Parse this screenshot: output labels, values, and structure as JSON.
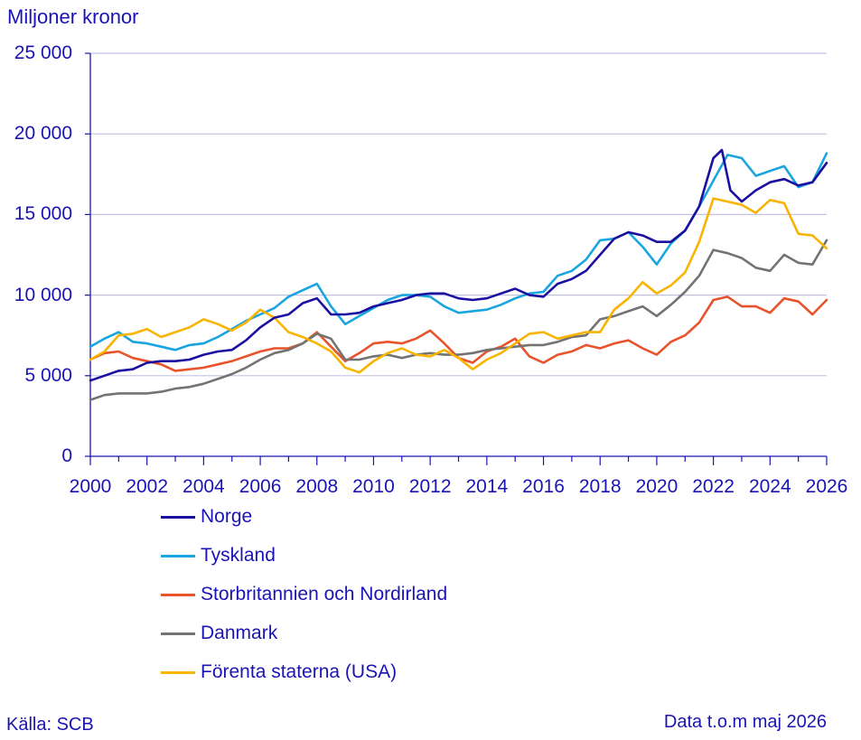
{
  "chart_data": {
    "type": "line",
    "title": "",
    "ylabel": "Miljoner kronor",
    "xlabel": "",
    "xlim": [
      2000,
      2026
    ],
    "ylim": [
      0,
      25000
    ],
    "grid": true,
    "legend_position": "bottom-left",
    "x_ticks": [
      "2000",
      "2002",
      "2004",
      "2006",
      "2008",
      "2010",
      "2012",
      "2014",
      "2016",
      "2018",
      "2020",
      "2022",
      "2024",
      "2026"
    ],
    "y_ticks": [
      "0",
      "5 000",
      "10 000",
      "15 000",
      "20 000",
      "25 000"
    ],
    "series": [
      {
        "name": "Norge",
        "color": "#1a0fa0",
        "x": [
          2000,
          2000.5,
          2001,
          2001.5,
          2002,
          2002.5,
          2003,
          2003.5,
          2004,
          2004.5,
          2005,
          2005.5,
          2006,
          2006.5,
          2007,
          2007.5,
          2008,
          2008.5,
          2009,
          2009.5,
          2010,
          2010.5,
          2011,
          2011.5,
          2012,
          2012.5,
          2013,
          2013.5,
          2014,
          2014.5,
          2015,
          2015.5,
          2016,
          2016.5,
          2017,
          2017.5,
          2018,
          2018.5,
          2019,
          2019.5,
          2020,
          2020.5,
          2021,
          2021.5,
          2022,
          2022.3,
          2022.6,
          2023,
          2023.5,
          2024,
          2024.5,
          2025,
          2025.5,
          2026
        ],
        "y": [
          4700,
          5000,
          5300,
          5400,
          5800,
          5900,
          5900,
          6000,
          6300,
          6500,
          6600,
          7200,
          8000,
          8600,
          8800,
          9500,
          9800,
          8800,
          8800,
          8900,
          9300,
          9500,
          9700,
          10000,
          10100,
          10100,
          9800,
          9700,
          9800,
          10100,
          10400,
          10000,
          9900,
          10700,
          11000,
          11500,
          12500,
          13500,
          13900,
          13700,
          13300,
          13300,
          14000,
          15500,
          18500,
          19000,
          16500,
          15800,
          16500,
          17000,
          17200,
          16800,
          17000,
          18200
        ]
      },
      {
        "name": "Tyskland",
        "color": "#19a5df",
        "x": [
          2000,
          2000.5,
          2001,
          2001.5,
          2002,
          2002.5,
          2003,
          2003.5,
          2004,
          2004.5,
          2005,
          2005.5,
          2006,
          2006.5,
          2007,
          2007.5,
          2008,
          2008.5,
          2009,
          2009.5,
          2010,
          2010.5,
          2011,
          2011.5,
          2012,
          2012.5,
          2013,
          2013.5,
          2014,
          2014.5,
          2015,
          2015.5,
          2016,
          2016.5,
          2017,
          2017.5,
          2018,
          2018.5,
          2019,
          2019.5,
          2020,
          2020.5,
          2021,
          2021.5,
          2022,
          2022.5,
          2023,
          2023.5,
          2024,
          2024.5,
          2025,
          2025.5,
          2026
        ],
        "y": [
          6800,
          7300,
          7700,
          7100,
          7000,
          6800,
          6600,
          6900,
          7000,
          7400,
          7900,
          8400,
          8800,
          9200,
          9900,
          10300,
          10700,
          9300,
          8200,
          8700,
          9200,
          9700,
          10000,
          10000,
          9900,
          9300,
          8900,
          9000,
          9100,
          9400,
          9800,
          10100,
          10200,
          11200,
          11500,
          12200,
          13400,
          13500,
          13900,
          13000,
          11900,
          13200,
          14000,
          15500,
          17100,
          18700,
          18500,
          17400,
          17700,
          18000,
          16700,
          17000,
          18800
        ]
      },
      {
        "name": "Storbritannien och Nordirland",
        "color": "#e8532c",
        "x": [
          2000,
          2000.5,
          2001,
          2001.5,
          2002,
          2002.5,
          2003,
          2003.5,
          2004,
          2004.5,
          2005,
          2005.5,
          2006,
          2006.5,
          2007,
          2007.5,
          2008,
          2008.5,
          2009,
          2009.5,
          2010,
          2010.5,
          2011,
          2011.5,
          2012,
          2012.5,
          2013,
          2013.5,
          2014,
          2014.5,
          2015,
          2015.5,
          2016,
          2016.5,
          2017,
          2017.5,
          2018,
          2018.5,
          2019,
          2019.5,
          2020,
          2020.5,
          2021,
          2021.5,
          2022,
          2022.5,
          2023,
          2023.5,
          2024,
          2024.5,
          2025,
          2025.5,
          2026
        ],
        "y": [
          6000,
          6400,
          6500,
          6100,
          5900,
          5700,
          5300,
          5400,
          5500,
          5700,
          5900,
          6200,
          6500,
          6700,
          6700,
          7000,
          7700,
          6800,
          5900,
          6400,
          7000,
          7100,
          7000,
          7300,
          7800,
          7000,
          6100,
          5800,
          6500,
          6800,
          7300,
          6200,
          5800,
          6300,
          6500,
          6900,
          6700,
          7000,
          7200,
          6700,
          6300,
          7100,
          7500,
          8300,
          9700,
          9900,
          9300,
          9300,
          8900,
          9800,
          9600,
          8800,
          9700
        ]
      },
      {
        "name": "Danmark",
        "color": "#737373",
        "x": [
          2000,
          2000.5,
          2001,
          2001.5,
          2002,
          2002.5,
          2003,
          2003.5,
          2004,
          2004.5,
          2005,
          2005.5,
          2006,
          2006.5,
          2007,
          2007.5,
          2008,
          2008.5,
          2009,
          2009.5,
          2010,
          2010.5,
          2011,
          2011.5,
          2012,
          2012.5,
          2013,
          2013.5,
          2014,
          2014.5,
          2015,
          2015.5,
          2016,
          2016.5,
          2017,
          2017.5,
          2018,
          2018.5,
          2019,
          2019.5,
          2020,
          2020.5,
          2021,
          2021.5,
          2022,
          2022.5,
          2023,
          2023.5,
          2024,
          2024.5,
          2025,
          2025.5,
          2026
        ],
        "y": [
          3500,
          3800,
          3900,
          3900,
          3900,
          4000,
          4200,
          4300,
          4500,
          4800,
          5100,
          5500,
          6000,
          6400,
          6600,
          7000,
          7600,
          7300,
          6000,
          6000,
          6200,
          6300,
          6100,
          6300,
          6400,
          6300,
          6300,
          6400,
          6600,
          6700,
          6800,
          6900,
          6900,
          7100,
          7400,
          7500,
          8500,
          8700,
          9000,
          9300,
          8700,
          9400,
          10200,
          11200,
          12800,
          12600,
          12300,
          11700,
          11500,
          12500,
          12000,
          11900,
          13400
        ]
      },
      {
        "name": "Förenta staterna (USA)",
        "color": "#f8b400",
        "x": [
          2000,
          2000.5,
          2001,
          2001.5,
          2002,
          2002.5,
          2003,
          2003.5,
          2004,
          2004.5,
          2005,
          2005.5,
          2006,
          2006.5,
          2007,
          2007.5,
          2008,
          2008.5,
          2009,
          2009.5,
          2010,
          2010.5,
          2011,
          2011.5,
          2012,
          2012.5,
          2013,
          2013.5,
          2014,
          2014.5,
          2015,
          2015.5,
          2016,
          2016.5,
          2017,
          2017.5,
          2018,
          2018.5,
          2019,
          2019.5,
          2020,
          2020.5,
          2021,
          2021.5,
          2022,
          2022.5,
          2023,
          2023.5,
          2024,
          2024.5,
          2025,
          2025.5,
          2026
        ],
        "y": [
          6000,
          6500,
          7500,
          7600,
          7900,
          7400,
          7700,
          8000,
          8500,
          8200,
          7800,
          8300,
          9100,
          8600,
          7700,
          7400,
          7000,
          6500,
          5500,
          5200,
          5900,
          6400,
          6700,
          6300,
          6200,
          6600,
          6100,
          5400,
          6000,
          6400,
          7000,
          7600,
          7700,
          7300,
          7500,
          7700,
          7700,
          9100,
          9800,
          10800,
          10100,
          10600,
          11400,
          13300,
          16000,
          15800,
          15600,
          15100,
          15900,
          15700,
          13800,
          13700,
          12900
        ]
      }
    ]
  },
  "footer": {
    "source": "Källa: SCB",
    "note": "Data t.o.m maj 2026"
  }
}
